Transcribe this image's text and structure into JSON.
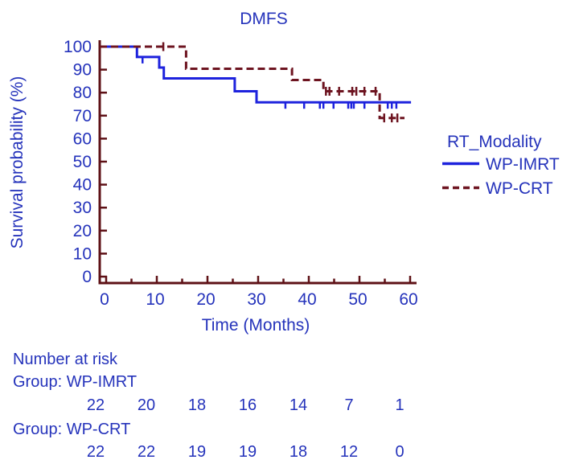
{
  "colors": {
    "text_blue": "#2533bb",
    "curve_blue": "#1d22dd",
    "curve_maroon": "#6d1420",
    "axis": "#5e1116",
    "background": "#ffffff"
  },
  "chart_data": {
    "type": "line",
    "subtype": "kaplan-meier-step",
    "title": "DMFS",
    "xlabel": "Time (Months)",
    "ylabel": "Survival probability (%)",
    "xlim": [
      0,
      60
    ],
    "ylim": [
      0,
      100
    ],
    "xticks_major": [
      0,
      10,
      20,
      30,
      40,
      50,
      60
    ],
    "xticks_minor": [
      5,
      15,
      25,
      35,
      45,
      55
    ],
    "yticks": [
      0,
      10,
      20,
      30,
      40,
      50,
      60,
      70,
      80,
      90,
      100
    ],
    "grid": false,
    "legend": {
      "title": "RT_Modality",
      "position": "right",
      "entries": [
        {
          "label": "WP-IMRT",
          "style": "solid",
          "color": "#1d22dd"
        },
        {
          "label": "WP-CRT",
          "style": "dashed",
          "color": "#6d1420"
        }
      ]
    },
    "series": [
      {
        "name": "WP-IMRT",
        "color": "#1d22dd",
        "dash": false,
        "censor_style": "down",
        "steps": [
          [
            0,
            100
          ],
          [
            6.4,
            100
          ],
          [
            6.4,
            95.5
          ],
          [
            10.8,
            95.5
          ],
          [
            10.8,
            90.9
          ],
          [
            11.7,
            90.9
          ],
          [
            11.7,
            86.2
          ],
          [
            25.7,
            86.2
          ],
          [
            25.7,
            80.6
          ],
          [
            30,
            80.6
          ],
          [
            30,
            75.8
          ],
          [
            60.5,
            75.8
          ]
        ],
        "censors": [
          [
            7.5,
            95.5
          ],
          [
            35.7,
            75.8
          ],
          [
            39.4,
            75.8
          ],
          [
            42.5,
            75.8
          ],
          [
            43.2,
            75.8
          ],
          [
            45.2,
            75.8
          ],
          [
            48.1,
            75.8
          ],
          [
            48.7,
            75.8
          ],
          [
            49.2,
            75.8
          ],
          [
            51.3,
            75.8
          ],
          [
            55.9,
            75.8
          ],
          [
            56.7,
            75.8
          ],
          [
            57.6,
            75.8
          ]
        ]
      },
      {
        "name": "WP-CRT",
        "color": "#6d1420",
        "dash": true,
        "censor_style": "cross",
        "steps": [
          [
            0,
            100
          ],
          [
            16.1,
            100
          ],
          [
            16.1,
            90.4
          ],
          [
            37,
            90.4
          ],
          [
            37,
            85.5
          ],
          [
            43.2,
            85.5
          ],
          [
            43.2,
            80.6
          ],
          [
            54.3,
            80.6
          ],
          [
            54.3,
            69
          ],
          [
            59.2,
            69
          ]
        ],
        "censors": [
          [
            11.6,
            100
          ],
          [
            43.7,
            80.6
          ],
          [
            44.4,
            80.6
          ],
          [
            46.3,
            80.6
          ],
          [
            48.9,
            80.6
          ],
          [
            49.7,
            80.6
          ],
          [
            51.3,
            80.6
          ],
          [
            53.5,
            80.6
          ],
          [
            55.2,
            69
          ],
          [
            56.7,
            69
          ],
          [
            57.8,
            69
          ]
        ]
      }
    ]
  },
  "risk_table": {
    "title": "Number at risk",
    "time_points": [
      0,
      10,
      20,
      30,
      40,
      50,
      60
    ],
    "groups": [
      {
        "label": "Group: WP-IMRT",
        "counts": [
          22,
          20,
          18,
          16,
          14,
          7,
          1
        ]
      },
      {
        "label": "Group: WP-CRT",
        "counts": [
          22,
          22,
          19,
          19,
          18,
          12,
          0
        ]
      }
    ]
  }
}
